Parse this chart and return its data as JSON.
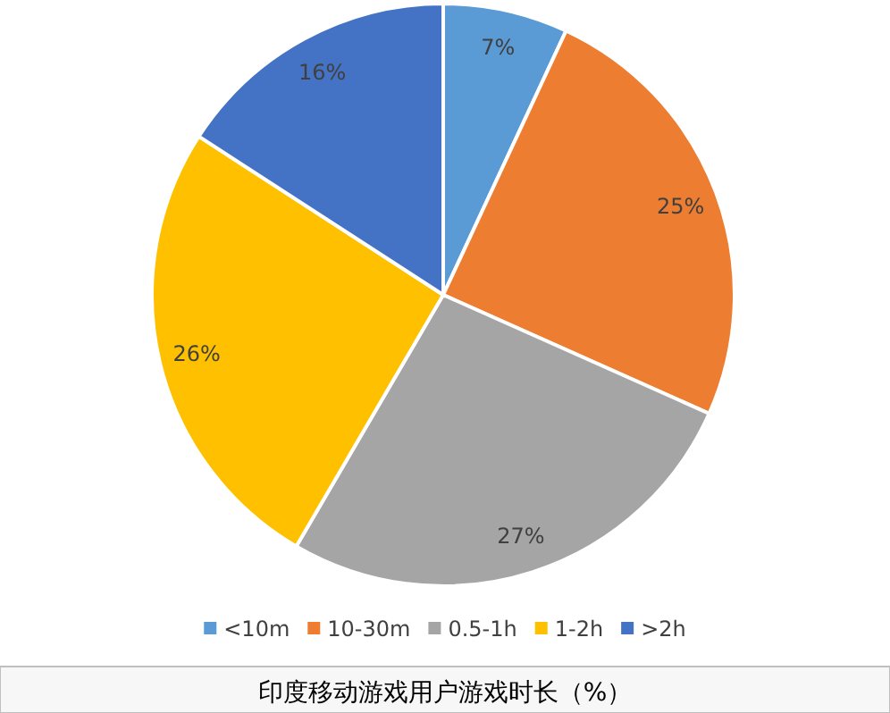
{
  "chart_data": {
    "type": "pie",
    "title": "印度移动游戏用户游戏时长（%）",
    "categories": [
      "<10m",
      "10-30m",
      "0.5-1h",
      "1-2h",
      ">2h"
    ],
    "values": [
      7,
      25,
      27,
      26,
      16
    ],
    "colors": [
      "#5b9bd5",
      "#ed7d31",
      "#a5a5a5",
      "#ffc000",
      "#4472c4"
    ],
    "value_labels": [
      "7%",
      "25%",
      "27%",
      "26%",
      "16%"
    ],
    "legend": "bottom"
  }
}
